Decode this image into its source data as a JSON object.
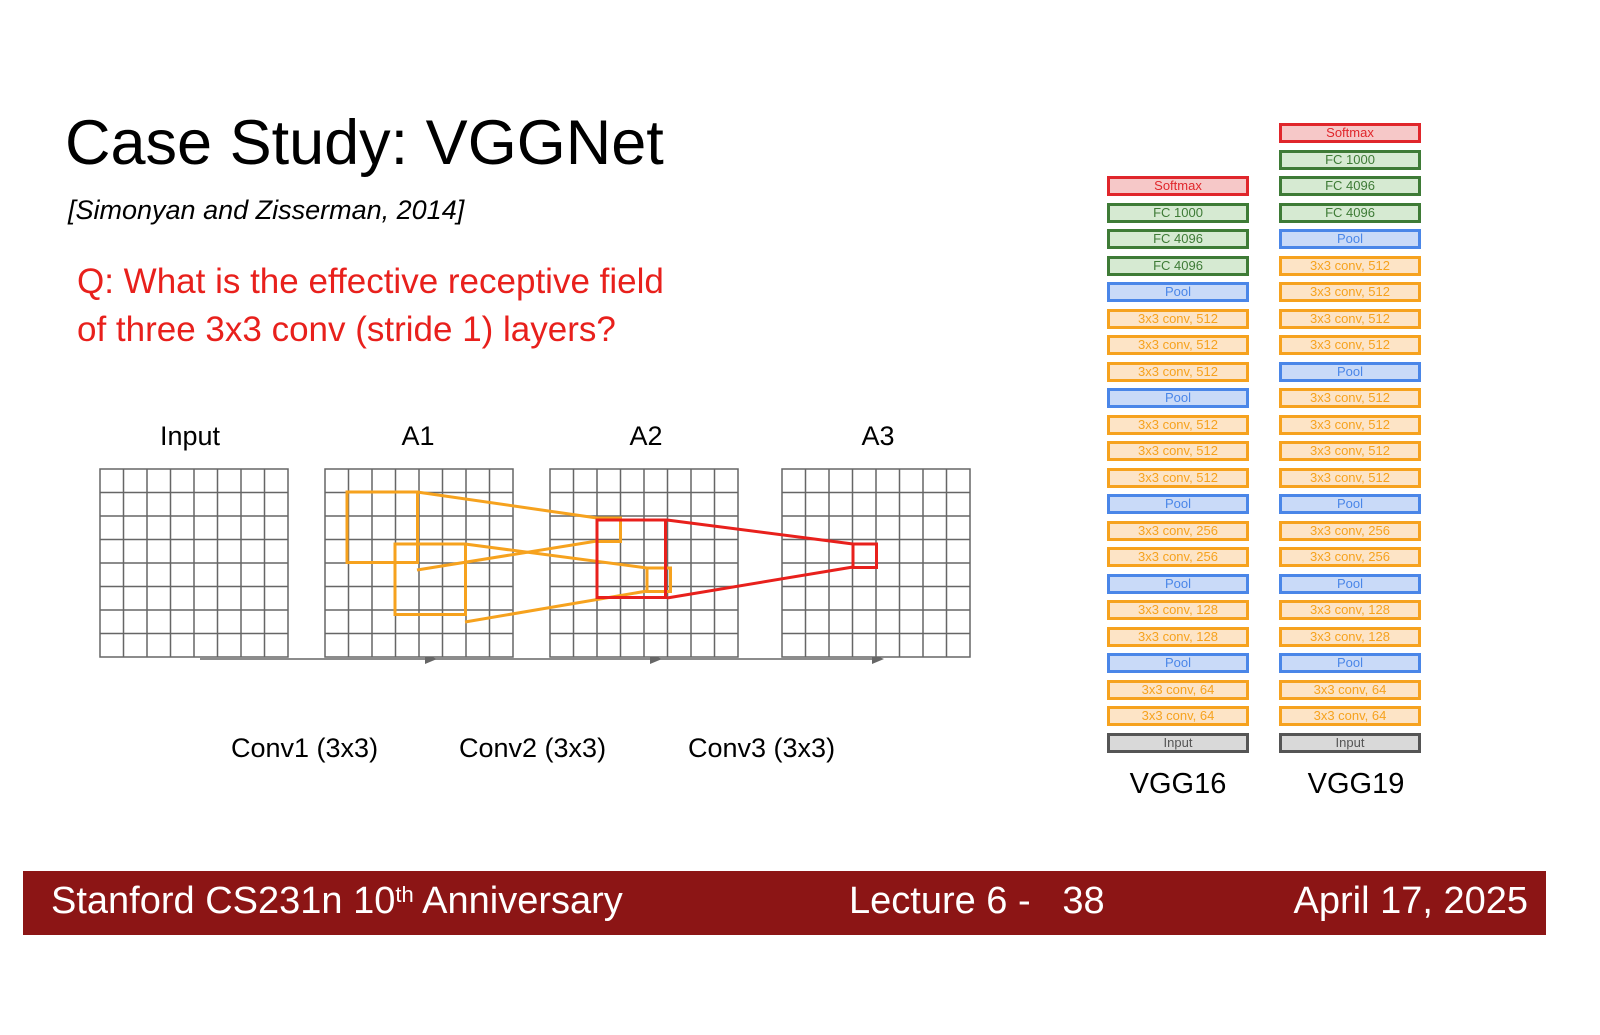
{
  "slide": {
    "title": "Case Study: VGGNet",
    "citation": "[Simonyan and Zisserman, 2014]",
    "question_line1": "Q: What is the effective receptive field",
    "question_line2": "of three 3x3 conv (stride 1) layers?"
  },
  "diagram": {
    "grids": [
      {
        "label": "Input"
      },
      {
        "label": "A1"
      },
      {
        "label": "A2"
      },
      {
        "label": "A3"
      }
    ],
    "conv_labels": [
      "Conv1 (3x3)",
      "Conv2 (3x3)",
      "Conv3 (3x3)"
    ],
    "grid_size": 8,
    "colors": {
      "grid": "#666666",
      "orange": "#f6a21e",
      "red": "#e8201c",
      "arrow": "#666666"
    }
  },
  "networks": [
    {
      "name": "VGG16",
      "layers": [
        {
          "label": "Softmax",
          "kind": "softmax"
        },
        {
          "label": "FC 1000",
          "kind": "fc"
        },
        {
          "label": "FC 4096",
          "kind": "fc"
        },
        {
          "label": "FC 4096",
          "kind": "fc"
        },
        {
          "label": "Pool",
          "kind": "pool"
        },
        {
          "label": "3x3 conv, 512",
          "kind": "conv"
        },
        {
          "label": "3x3 conv, 512",
          "kind": "conv"
        },
        {
          "label": "3x3 conv, 512",
          "kind": "conv"
        },
        {
          "label": "Pool",
          "kind": "pool"
        },
        {
          "label": "3x3 conv, 512",
          "kind": "conv"
        },
        {
          "label": "3x3 conv, 512",
          "kind": "conv"
        },
        {
          "label": "3x3 conv, 512",
          "kind": "conv"
        },
        {
          "label": "Pool",
          "kind": "pool"
        },
        {
          "label": "3x3 conv, 256",
          "kind": "conv"
        },
        {
          "label": "3x3 conv, 256",
          "kind": "conv"
        },
        {
          "label": "Pool",
          "kind": "pool"
        },
        {
          "label": "3x3 conv, 128",
          "kind": "conv"
        },
        {
          "label": "3x3 conv, 128",
          "kind": "conv"
        },
        {
          "label": "Pool",
          "kind": "pool"
        },
        {
          "label": "3x3 conv, 64",
          "kind": "conv"
        },
        {
          "label": "3x3 conv, 64",
          "kind": "conv"
        },
        {
          "label": "Input",
          "kind": "input"
        }
      ]
    },
    {
      "name": "VGG19",
      "layers": [
        {
          "label": "Softmax",
          "kind": "softmax"
        },
        {
          "label": "FC 1000",
          "kind": "fc"
        },
        {
          "label": "FC 4096",
          "kind": "fc"
        },
        {
          "label": "FC 4096",
          "kind": "fc"
        },
        {
          "label": "Pool",
          "kind": "pool"
        },
        {
          "label": "3x3 conv, 512",
          "kind": "conv"
        },
        {
          "label": "3x3 conv, 512",
          "kind": "conv"
        },
        {
          "label": "3x3 conv, 512",
          "kind": "conv"
        },
        {
          "label": "3x3 conv, 512",
          "kind": "conv"
        },
        {
          "label": "Pool",
          "kind": "pool"
        },
        {
          "label": "3x3 conv, 512",
          "kind": "conv"
        },
        {
          "label": "3x3 conv, 512",
          "kind": "conv"
        },
        {
          "label": "3x3 conv, 512",
          "kind": "conv"
        },
        {
          "label": "3x3 conv, 512",
          "kind": "conv"
        },
        {
          "label": "Pool",
          "kind": "pool"
        },
        {
          "label": "3x3 conv, 256",
          "kind": "conv"
        },
        {
          "label": "3x3 conv, 256",
          "kind": "conv"
        },
        {
          "label": "Pool",
          "kind": "pool"
        },
        {
          "label": "3x3 conv, 128",
          "kind": "conv"
        },
        {
          "label": "3x3 conv, 128",
          "kind": "conv"
        },
        {
          "label": "Pool",
          "kind": "pool"
        },
        {
          "label": "3x3 conv, 64",
          "kind": "conv"
        },
        {
          "label": "3x3 conv, 64",
          "kind": "conv"
        },
        {
          "label": "Input",
          "kind": "input"
        }
      ]
    }
  ],
  "footer": {
    "course": "Stanford CS231n 10",
    "course_sup": "th",
    "course_suffix": " Anniversary",
    "lecture": "Lecture 6 -   38",
    "date": "April 17, 2025",
    "bg_color": "#8c1515"
  }
}
